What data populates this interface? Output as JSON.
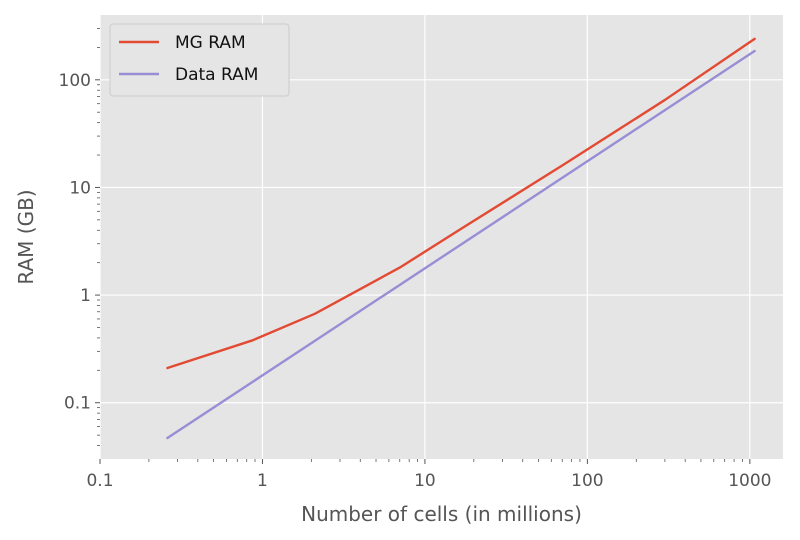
{
  "chart_data": {
    "type": "line",
    "xlabel": "Number of cells (in millions)",
    "ylabel": "RAM (GB)",
    "xscale": "log",
    "yscale": "log",
    "xlim": [
      0.1,
      1600
    ],
    "ylim": [
      0.03,
      400
    ],
    "grid": true,
    "legend_position": "top-left",
    "x_ticks": [
      {
        "value": 0.1,
        "label": "0.1"
      },
      {
        "value": 1,
        "label": "1"
      },
      {
        "value": 10,
        "label": "10"
      },
      {
        "value": 100,
        "label": "100"
      },
      {
        "value": 1000,
        "label": "1000"
      }
    ],
    "y_ticks": [
      {
        "value": 0.1,
        "label": "0.1"
      },
      {
        "value": 1,
        "label": "1"
      },
      {
        "value": 10,
        "label": "10"
      },
      {
        "value": 100,
        "label": "100"
      }
    ],
    "series": [
      {
        "name": "MG RAM",
        "color": "#e24a33",
        "points": [
          [
            0.26,
            0.21
          ],
          [
            0.87,
            0.38
          ],
          [
            2.1,
            0.67
          ],
          [
            7,
            1.8
          ],
          [
            17,
            4.2
          ],
          [
            70,
            16
          ],
          [
            300,
            65
          ],
          [
            1070,
            240
          ]
        ]
      },
      {
        "name": "Data RAM",
        "color": "#988ed5",
        "points": [
          [
            0.26,
            0.047
          ],
          [
            1070,
            185
          ]
        ]
      }
    ]
  }
}
